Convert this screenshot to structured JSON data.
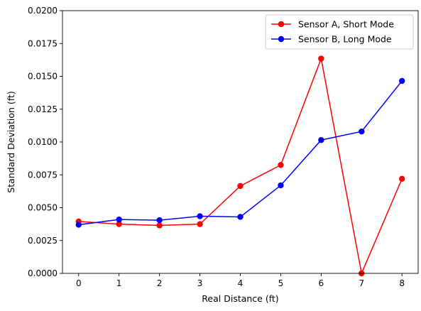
{
  "chart_data": {
    "type": "line",
    "title": "",
    "xlabel": "Real Distance (ft)",
    "ylabel": "Standard Deviation (ft)",
    "xlim": [
      -0.4,
      8.4
    ],
    "ylim": [
      0,
      0.02
    ],
    "grid": false,
    "legend_position": "top-right",
    "x": [
      0,
      1,
      2,
      3,
      4,
      5,
      6,
      7,
      8
    ],
    "x_tick_labels": [
      "0",
      "1",
      "2",
      "3",
      "4",
      "5",
      "6",
      "7",
      "8"
    ],
    "y_ticks": [
      0,
      0.0025,
      0.005,
      0.0075,
      0.01,
      0.0125,
      0.015,
      0.0175,
      0.02
    ],
    "y_tick_labels": [
      "0.0000",
      "0.0025",
      "0.0050",
      "0.0075",
      "0.0100",
      "0.0125",
      "0.0150",
      "0.0175",
      "0.0200"
    ],
    "series": [
      {
        "name": "Sensor A, Short Mode",
        "color": "#ff0000",
        "marker": "circle",
        "values": [
          0.00395,
          0.00375,
          0.00365,
          0.00375,
          0.00665,
          0.00825,
          0.01635,
          0.0,
          0.0072
        ]
      },
      {
        "name": "Sensor B, Long Mode",
        "color": "#0000ff",
        "marker": "circle",
        "values": [
          0.0037,
          0.0041,
          0.00405,
          0.00435,
          0.0043,
          0.0067,
          0.01015,
          0.0108,
          0.01465
        ]
      }
    ]
  }
}
